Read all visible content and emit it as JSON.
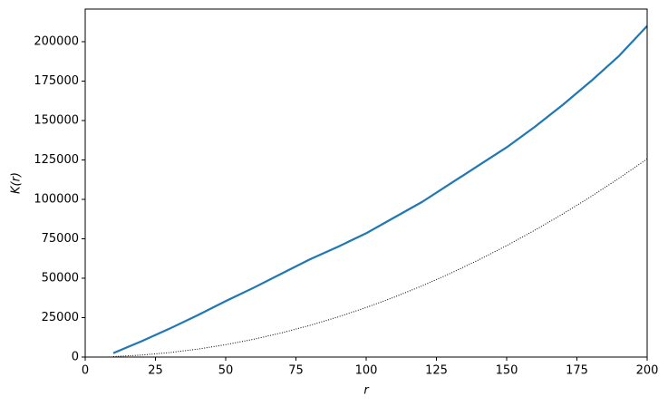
{
  "chart_data": {
    "type": "line",
    "xlabel": "r",
    "ylabel": "K(r)",
    "x": [
      10,
      20,
      30,
      40,
      50,
      60,
      70,
      80,
      90,
      100,
      110,
      120,
      130,
      140,
      150,
      160,
      170,
      180,
      190,
      200
    ],
    "series": [
      {
        "color": "#1f77b4",
        "linestyle": "solid",
        "linewidth": 2.2,
        "values": [
          2500,
          10000,
          18000,
          26500,
          35500,
          44000,
          53000,
          62000,
          70000,
          78500,
          88500,
          98500,
          110000,
          121500,
          133000,
          146000,
          160000,
          175000,
          191000,
          210000
        ]
      },
      {
        "color": "#000000",
        "linestyle": "dotted",
        "linewidth": 1,
        "values": [
          314,
          1257,
          2827,
          5027,
          7854,
          11310,
          15394,
          20106,
          25447,
          31416,
          38013,
          45239,
          53093,
          61575,
          70686,
          80425,
          90792,
          101788,
          113411,
          125664
        ]
      }
    ],
    "xlim": [
      0,
      200
    ],
    "xticks": [
      0,
      25,
      50,
      75,
      100,
      125,
      150,
      175,
      200
    ],
    "ylim": [
      0,
      220700
    ],
    "yticks": [
      0,
      25000,
      50000,
      75000,
      100000,
      125000,
      150000,
      175000,
      200000
    ],
    "grid": false
  }
}
